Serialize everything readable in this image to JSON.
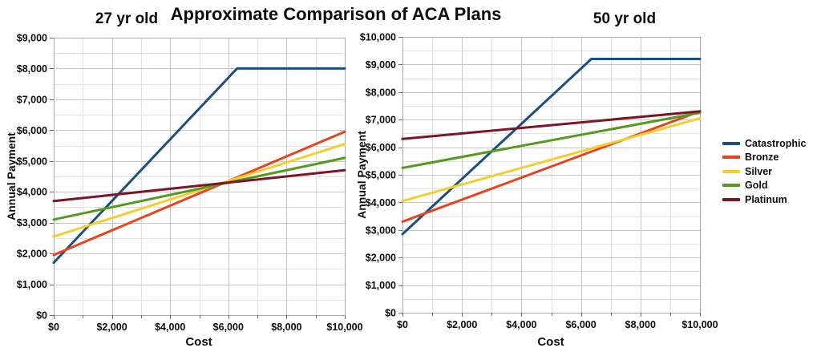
{
  "main_title": "Approximate Comparison of ACA Plans",
  "legend": {
    "position": "right",
    "entries": [
      {
        "label": "Catastrophic",
        "color": "#1B4E7E"
      },
      {
        "label": "Bronze",
        "color": "#E8431C"
      },
      {
        "label": "Silver",
        "color": "#F2CE2E"
      },
      {
        "label": "Gold",
        "color": "#55991E"
      },
      {
        "label": "Platinum",
        "color": "#7E1424"
      }
    ]
  },
  "style_colors": {
    "grid_major": "#C6C6C6",
    "grid_minor": "#E2E2E2",
    "plot_border": "#ABABAB",
    "tick_mark": "#6B6B6B",
    "tick_text": "#0d0d0d"
  },
  "chart_data": [
    {
      "type": "line",
      "title": "27 yr old",
      "xlabel": "Cost",
      "ylabel": "Annual Payment",
      "xlim": [
        0,
        10000
      ],
      "ylim": [
        0,
        9000
      ],
      "x_major_step": 2000,
      "x_minor_step": 1000,
      "y_major_step": 1000,
      "y_minor_step": 500,
      "grid": true,
      "x_tick_labels": [
        "$0",
        "$2,000",
        "$4,000",
        "$6,000",
        "$8,000",
        "$10,000"
      ],
      "y_tick_labels": [
        "$0",
        "$1,000",
        "$2,000",
        "$3,000",
        "$4,000",
        "$5,000",
        "$6,000",
        "$7,000",
        "$8,000",
        "$9,000"
      ],
      "series": [
        {
          "name": "Catastrophic",
          "points": [
            [
              0,
              1700
            ],
            [
              6300,
              8000
            ],
            [
              10000,
              8000
            ]
          ]
        },
        {
          "name": "Bronze",
          "points": [
            [
              0,
              1950
            ],
            [
              10000,
              5950
            ]
          ]
        },
        {
          "name": "Silver",
          "points": [
            [
              0,
              2550
            ],
            [
              10000,
              5550
            ]
          ]
        },
        {
          "name": "Gold",
          "points": [
            [
              0,
              3100
            ],
            [
              10000,
              5100
            ]
          ]
        },
        {
          "name": "Platinum",
          "points": [
            [
              0,
              3700
            ],
            [
              10000,
              4700
            ]
          ]
        }
      ]
    },
    {
      "type": "line",
      "title": "50 yr old",
      "xlabel": "Cost",
      "ylabel": "Annual Payment",
      "xlim": [
        0,
        10000
      ],
      "ylim": [
        0,
        10000
      ],
      "x_major_step": 2000,
      "x_minor_step": 1000,
      "y_major_step": 1000,
      "y_minor_step": 500,
      "grid": true,
      "x_tick_labels": [
        "$0",
        "$2,000",
        "$4,000",
        "$6,000",
        "$8,000",
        "$10,000"
      ],
      "y_tick_labels": [
        "$0",
        "$1,000",
        "$2,000",
        "$3,000",
        "$4,000",
        "$5,000",
        "$6,000",
        "$7,000",
        "$8,000",
        "$9,000",
        "$10,000"
      ],
      "series": [
        {
          "name": "Catastrophic",
          "points": [
            [
              0,
              2850
            ],
            [
              6350,
              9200
            ],
            [
              10000,
              9200
            ]
          ]
        },
        {
          "name": "Bronze",
          "points": [
            [
              0,
              3300
            ],
            [
              10000,
              7300
            ]
          ]
        },
        {
          "name": "Silver",
          "points": [
            [
              0,
              4050
            ],
            [
              10000,
              7050
            ]
          ]
        },
        {
          "name": "Gold",
          "points": [
            [
              0,
              5250
            ],
            [
              10000,
              7250
            ]
          ]
        },
        {
          "name": "Platinum",
          "points": [
            [
              0,
              6300
            ],
            [
              10000,
              7300
            ]
          ]
        }
      ]
    }
  ]
}
